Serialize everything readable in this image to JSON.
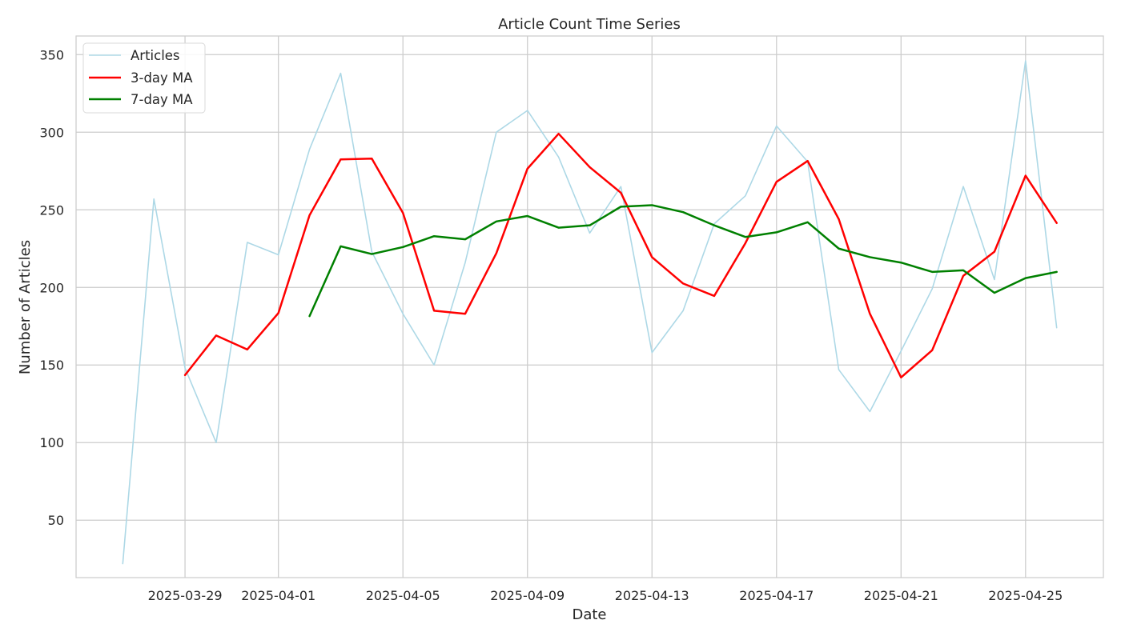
{
  "chart_data": {
    "type": "line",
    "title": "Article Count Time Series",
    "xlabel": "Date",
    "ylabel": "Number of Articles",
    "x_start": "2025-03-27",
    "x": [
      "2025-03-27",
      "2025-03-28",
      "2025-03-29",
      "2025-03-30",
      "2025-03-31",
      "2025-04-01",
      "2025-04-02",
      "2025-04-03",
      "2025-04-04",
      "2025-04-05",
      "2025-04-06",
      "2025-04-07",
      "2025-04-08",
      "2025-04-09",
      "2025-04-10",
      "2025-04-11",
      "2025-04-12",
      "2025-04-13",
      "2025-04-14",
      "2025-04-15",
      "2025-04-16",
      "2025-04-17",
      "2025-04-18",
      "2025-04-19",
      "2025-04-20",
      "2025-04-21",
      "2025-04-22",
      "2025-04-23",
      "2025-04-24",
      "2025-04-25",
      "2025-04-26"
    ],
    "x_tick_labels": [
      "2025-03-29",
      "2025-04-01",
      "2025-04-05",
      "2025-04-09",
      "2025-04-13",
      "2025-04-17",
      "2025-04-21",
      "2025-04-25"
    ],
    "y_ticks": [
      50,
      100,
      150,
      200,
      250,
      300,
      350
    ],
    "xlim": [
      "2025-03-25.5",
      "2025-04-27.5"
    ],
    "ylim": [
      13,
      362
    ],
    "grid": true,
    "legend_position": "top-left",
    "series": [
      {
        "name": "Articles",
        "color": "#add8e6",
        "values": [
          22,
          257,
          148,
          100,
          229,
          221,
          289,
          338,
          223,
          183,
          150,
          216,
          300,
          314,
          284,
          235,
          265,
          158,
          185,
          241,
          259,
          304,
          281,
          147,
          120,
          159,
          199,
          265,
          205,
          346,
          174
        ]
      },
      {
        "name": "3-day MA",
        "color": "#ff0000",
        "values": [
          null,
          null,
          143.5,
          169,
          160,
          183.5,
          246.5,
          282.5,
          283,
          248,
          185,
          183,
          222,
          276.5,
          299,
          277.5,
          261,
          219.5,
          202.5,
          194.5,
          228.5,
          268,
          281.5,
          244,
          183,
          142,
          159.5,
          207.5,
          223,
          272,
          241.5
        ]
      },
      {
        "name": "7-day MA",
        "color": "#008000",
        "values": [
          null,
          null,
          null,
          null,
          null,
          null,
          181.5,
          226.5,
          221.5,
          226,
          233,
          231,
          242.5,
          246,
          238.5,
          240,
          252,
          253,
          248.5,
          240,
          232.5,
          235.5,
          242,
          225,
          219.5,
          216,
          210,
          211,
          196.5,
          206,
          210
        ]
      }
    ]
  }
}
